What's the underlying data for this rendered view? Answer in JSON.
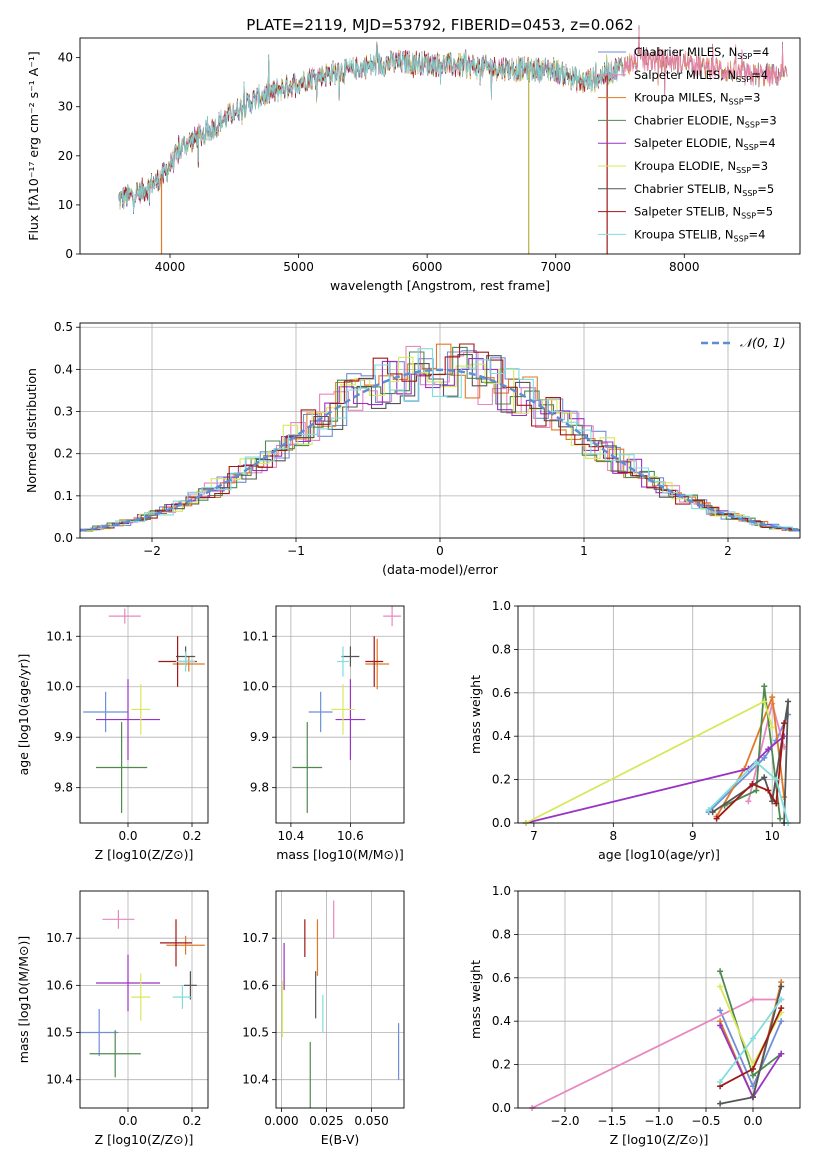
{
  "title": "PLATE=2119, MJD=53792, FIBERID=0453, z=0.062",
  "legend_entries": [
    {
      "name": "Chabrier MILES, N",
      "sub": "SSP",
      "tail": "=4",
      "color": "#6f8fd8"
    },
    {
      "name": "Salpeter MILES, N",
      "sub": "SSP",
      "tail": "=4",
      "color": "#e887c0"
    },
    {
      "name": "Kroupa MILES, N",
      "sub": "SSP",
      "tail": "=3",
      "color": "#e07a27"
    },
    {
      "name": "Chabrier ELODIE, N",
      "sub": "SSP",
      "tail": "=3",
      "color": "#4e8a4e"
    },
    {
      "name": "Salpeter ELODIE, N",
      "sub": "SSP",
      "tail": "=4",
      "color": "#9a33c4"
    },
    {
      "name": "Kroupa ELODIE, N",
      "sub": "SSP",
      "tail": "=3",
      "color": "#d8e85a"
    },
    {
      "name": "Chabrier STELIB, N",
      "sub": "SSP",
      "tail": "=5",
      "color": "#555555"
    },
    {
      "name": "Salpeter STELIB, N",
      "sub": "SSP",
      "tail": "=5",
      "color": "#a01818"
    },
    {
      "name": "Kroupa STELIB, N",
      "sub": "SSP",
      "tail": "=4",
      "color": "#80dede"
    }
  ],
  "chart_data": [
    {
      "id": "spectrum",
      "type": "line",
      "xlabel": "wavelength [Angstrom, rest frame]",
      "ylabel": "Flux [fλ10⁻¹⁷ erg cm⁻² s⁻¹ A⁻¹]",
      "xlim": [
        3300,
        8900
      ],
      "ylim": [
        0,
        44
      ],
      "xticks": [
        4000,
        5000,
        6000,
        7000,
        8000
      ],
      "yticks": [
        0,
        10,
        20,
        30,
        40
      ],
      "continuum_knots": [
        [
          3600,
          11
        ],
        [
          3800,
          13
        ],
        [
          3950,
          16
        ],
        [
          4100,
          22
        ],
        [
          4300,
          25
        ],
        [
          4500,
          29
        ],
        [
          4700,
          32
        ],
        [
          4900,
          34
        ],
        [
          5100,
          36
        ],
        [
          5300,
          37
        ],
        [
          5500,
          38
        ],
        [
          5700,
          39
        ],
        [
          5900,
          39
        ],
        [
          6200,
          38.5
        ],
        [
          6500,
          38
        ],
        [
          6800,
          37.5
        ],
        [
          7000,
          37.5
        ],
        [
          7200,
          35
        ],
        [
          7300,
          35.5
        ],
        [
          7500,
          38
        ],
        [
          7650,
          39.5
        ],
        [
          7800,
          39.5
        ],
        [
          8000,
          39
        ],
        [
          8300,
          37.5
        ],
        [
          8500,
          36.5
        ],
        [
          8800,
          36.5
        ]
      ],
      "spikes": [
        [
          3934,
          0
        ],
        [
          6790,
          0
        ],
        [
          7400,
          0
        ]
      ],
      "grid": false
    },
    {
      "id": "residual_hist",
      "type": "step",
      "xlabel": "(data-model)/error",
      "ylabel": "Normed distribution",
      "xlim": [
        -2.5,
        2.5
      ],
      "ylim": [
        0,
        0.51
      ],
      "xticks": [
        -2,
        -1,
        0,
        1,
        2
      ],
      "yticks": [
        0.0,
        0.1,
        0.2,
        0.3,
        0.4,
        0.5
      ],
      "bin_width": 0.1,
      "legend": "N(0,1)",
      "gauss_color": "#5b8ed6",
      "grid": true
    },
    {
      "id": "age_vs_Z",
      "type": "errorbar",
      "xlabel": "Z [log10(Z/Z⊙)]",
      "ylabel": "age  [log10(age/yr)]",
      "xlim": [
        -0.15,
        0.25
      ],
      "ylim": [
        9.73,
        10.16
      ],
      "xticks": [
        0.0,
        0.2
      ],
      "yticks": [
        9.8,
        9.9,
        10.0,
        10.1
      ],
      "points": [
        {
          "x": -0.07,
          "y": 9.95,
          "dx": 0.07,
          "dy": 0.04,
          "c": 0
        },
        {
          "x": -0.01,
          "y": 10.14,
          "dx": 0.05,
          "dy": 0.015,
          "c": 1
        },
        {
          "x": 0.19,
          "y": 10.045,
          "dx": 0.05,
          "dy": 0.015,
          "c": 2
        },
        {
          "x": -0.02,
          "y": 9.84,
          "dx": 0.08,
          "dy": 0.09,
          "c": 3
        },
        {
          "x": 0.0,
          "y": 9.935,
          "dx": 0.1,
          "dy": 0.08,
          "c": 4
        },
        {
          "x": 0.04,
          "y": 9.955,
          "dx": 0.03,
          "dy": 0.05,
          "c": 5
        },
        {
          "x": 0.18,
          "y": 10.06,
          "dx": 0.03,
          "dy": 0.02,
          "c": 6
        },
        {
          "x": 0.155,
          "y": 10.05,
          "dx": 0.06,
          "dy": 0.05,
          "c": 7
        },
        {
          "x": 0.18,
          "y": 10.05,
          "dx": 0.03,
          "dy": 0.02,
          "c": 8
        }
      ],
      "grid": true
    },
    {
      "id": "age_vs_mass",
      "type": "errorbar",
      "xlabel": "mass [log10(M/M⊙)]",
      "ylabel": "",
      "xlim": [
        10.35,
        10.78
      ],
      "ylim": [
        9.73,
        10.16
      ],
      "xticks": [
        10.4,
        10.6
      ],
      "yticks": [
        9.8,
        9.9,
        10.0,
        10.1
      ],
      "points": [
        {
          "x": 10.5,
          "y": 9.95,
          "dx": 0.04,
          "dy": 0.04,
          "c": 0
        },
        {
          "x": 10.74,
          "y": 10.14,
          "dx": 0.03,
          "dy": 0.02,
          "c": 1
        },
        {
          "x": 10.69,
          "y": 10.045,
          "dx": 0.04,
          "dy": 0.05,
          "c": 2
        },
        {
          "x": 10.455,
          "y": 9.84,
          "dx": 0.05,
          "dy": 0.09,
          "c": 3
        },
        {
          "x": 10.6,
          "y": 9.935,
          "dx": 0.05,
          "dy": 0.08,
          "c": 4
        },
        {
          "x": 10.575,
          "y": 9.955,
          "dx": 0.04,
          "dy": 0.05,
          "c": 5
        },
        {
          "x": 10.6,
          "y": 10.06,
          "dx": 0.03,
          "dy": 0.02,
          "c": 6
        },
        {
          "x": 10.68,
          "y": 10.05,
          "dx": 0.03,
          "dy": 0.05,
          "c": 7
        },
        {
          "x": 10.575,
          "y": 10.05,
          "dx": 0.02,
          "dy": 0.03,
          "c": 8
        }
      ],
      "grid": true
    },
    {
      "id": "mw_vs_age",
      "type": "line",
      "xlabel": "age  [log10(age/yr)]",
      "ylabel": "mass weight",
      "xlim": [
        6.8,
        10.35
      ],
      "ylim": [
        0,
        1
      ],
      "xticks": [
        7,
        8,
        9,
        10
      ],
      "yticks": [
        0.0,
        0.2,
        0.4,
        0.6,
        0.8,
        1.0
      ],
      "series": [
        {
          "c": 0,
          "x": [
            9.2,
            9.9,
            10.05,
            10.2
          ],
          "y": [
            0.05,
            0.3,
            0.38,
            0.5
          ]
        },
        {
          "c": 1,
          "x": [
            9.7,
            10.0,
            10.15
          ],
          "y": [
            0.1,
            0.55,
            0.35
          ]
        },
        {
          "c": 2,
          "x": [
            9.3,
            9.65,
            10.0,
            10.15
          ],
          "y": [
            0.03,
            0.25,
            0.58,
            0.12
          ]
        },
        {
          "c": 3,
          "x": [
            9.4,
            9.8,
            9.9,
            10.1
          ],
          "y": [
            0.08,
            0.15,
            0.63,
            0.02
          ]
        },
        {
          "c": 4,
          "x": [
            6.9,
            9.7,
            9.95,
            10.15
          ],
          "y": [
            0.0,
            0.25,
            0.34,
            0.4
          ]
        },
        {
          "c": 5,
          "x": [
            6.9,
            9.9,
            10.0
          ],
          "y": [
            0.0,
            0.56,
            0.44
          ]
        },
        {
          "c": 6,
          "x": [
            9.25,
            9.9,
            10.0,
            10.2,
            10.15
          ],
          "y": [
            0.05,
            0.21,
            0.1,
            0.56,
            0.0
          ]
        },
        {
          "c": 7,
          "x": [
            9.3,
            9.75,
            9.95,
            10.05,
            10.15
          ],
          "y": [
            0.02,
            0.18,
            0.15,
            0.09,
            0.46
          ]
        },
        {
          "c": 8,
          "x": [
            9.2,
            9.8,
            10.05,
            10.2
          ],
          "y": [
            0.06,
            0.28,
            0.2,
            0.0
          ]
        }
      ],
      "grid": true
    },
    {
      "id": "mass_vs_Z",
      "type": "errorbar",
      "xlabel": "Z [log10(Z/Z⊙)]",
      "ylabel": "mass [log10(M/M⊙)]",
      "xlim": [
        -0.15,
        0.25
      ],
      "ylim": [
        10.34,
        10.8
      ],
      "xticks": [
        0.0,
        0.2
      ],
      "yticks": [
        10.4,
        10.5,
        10.6,
        10.7
      ],
      "points": [
        {
          "x": -0.09,
          "y": 10.5,
          "dx": 0.06,
          "dy": 0.05,
          "c": 0
        },
        {
          "x": -0.03,
          "y": 10.74,
          "dx": 0.05,
          "dy": 0.02,
          "c": 1
        },
        {
          "x": 0.18,
          "y": 10.685,
          "dx": 0.06,
          "dy": 0.02,
          "c": 2
        },
        {
          "x": -0.04,
          "y": 10.455,
          "dx": 0.08,
          "dy": 0.05,
          "c": 3
        },
        {
          "x": 0.0,
          "y": 10.605,
          "dx": 0.1,
          "dy": 0.06,
          "c": 4
        },
        {
          "x": 0.04,
          "y": 10.575,
          "dx": 0.03,
          "dy": 0.05,
          "c": 5
        },
        {
          "x": 0.195,
          "y": 10.6,
          "dx": 0.02,
          "dy": 0.03,
          "c": 6
        },
        {
          "x": 0.15,
          "y": 10.69,
          "dx": 0.05,
          "dy": 0.05,
          "c": 7
        },
        {
          "x": 0.17,
          "y": 10.575,
          "dx": 0.03,
          "dy": 0.025,
          "c": 8
        }
      ],
      "grid": true
    },
    {
      "id": "mass_vs_ebv",
      "type": "errorbar",
      "xlabel": "E(B-V)",
      "ylabel": "",
      "xlim": [
        -0.003,
        0.068
      ],
      "ylim": [
        10.34,
        10.8
      ],
      "xticks": [
        0.0,
        0.025,
        0.05
      ],
      "xtick_labels": [
        "0.000",
        "0.025",
        "0.050"
      ],
      "yticks": [
        10.4,
        10.5,
        10.6,
        10.7
      ],
      "points": [
        {
          "x": 0.065,
          "y": 10.46,
          "dx": 0,
          "dy": 0.06,
          "c": 0
        },
        {
          "x": 0.029,
          "y": 10.74,
          "dx": 0,
          "dy": 0.04,
          "c": 1
        },
        {
          "x": 0.02,
          "y": 10.68,
          "dx": 0,
          "dy": 0.06,
          "c": 2
        },
        {
          "x": 0.016,
          "y": 10.41,
          "dx": 0,
          "dy": 0.07,
          "c": 3
        },
        {
          "x": 0.0015,
          "y": 10.64,
          "dx": 0,
          "dy": 0.05,
          "c": 4
        },
        {
          "x": 0.0005,
          "y": 10.55,
          "dx": 0,
          "dy": 0.06,
          "c": 5
        },
        {
          "x": 0.019,
          "y": 10.58,
          "dx": 0,
          "dy": 0.05,
          "c": 6
        },
        {
          "x": 0.013,
          "y": 10.7,
          "dx": 0,
          "dy": 0.04,
          "c": 7
        },
        {
          "x": 0.023,
          "y": 10.54,
          "dx": 0,
          "dy": 0.04,
          "c": 8
        }
      ],
      "grid": true
    },
    {
      "id": "mw_vs_Z",
      "type": "line",
      "xlabel": "Z [log10(Z/Z⊙)]",
      "ylabel": "mass weight",
      "xlim": [
        -2.5,
        0.5
      ],
      "ylim": [
        0,
        1
      ],
      "xticks": [
        -2.0,
        -1.5,
        -1.0,
        -0.5,
        0.0
      ],
      "xtick_labels": [
        "−2.0",
        "−1.5",
        "−1.0",
        "−0.5",
        "0.0"
      ],
      "yticks": [
        0.0,
        0.2,
        0.4,
        0.6,
        0.8,
        1.0
      ],
      "series": [
        {
          "c": 0,
          "x": [
            -0.35,
            0.0,
            0.3
          ],
          "y": [
            0.45,
            0.1,
            0.4
          ]
        },
        {
          "c": 1,
          "x": [
            -2.35,
            0.0,
            0.3
          ],
          "y": [
            0.0,
            0.5,
            0.5
          ]
        },
        {
          "c": 2,
          "x": [
            -0.35,
            0.0,
            0.3
          ],
          "y": [
            0.4,
            0.05,
            0.58
          ]
        },
        {
          "c": 3,
          "x": [
            -0.35,
            0.0,
            0.3
          ],
          "y": [
            0.63,
            0.15,
            0.25
          ]
        },
        {
          "c": 4,
          "x": [
            -0.35,
            0.0,
            0.3
          ],
          "y": [
            0.38,
            0.05,
            0.25
          ]
        },
        {
          "c": 5,
          "x": [
            -0.35,
            0.0,
            0.3
          ],
          "y": [
            0.56,
            0.2,
            0.44
          ]
        },
        {
          "c": 6,
          "x": [
            -0.35,
            0.0,
            0.3
          ],
          "y": [
            0.02,
            0.05,
            0.56
          ]
        },
        {
          "c": 7,
          "x": [
            -0.35,
            0.0,
            0.3
          ],
          "y": [
            0.1,
            0.18,
            0.46
          ]
        },
        {
          "c": 8,
          "x": [
            -0.35,
            0.0,
            0.3
          ],
          "y": [
            0.12,
            0.32,
            0.5
          ]
        }
      ],
      "grid": true
    }
  ]
}
